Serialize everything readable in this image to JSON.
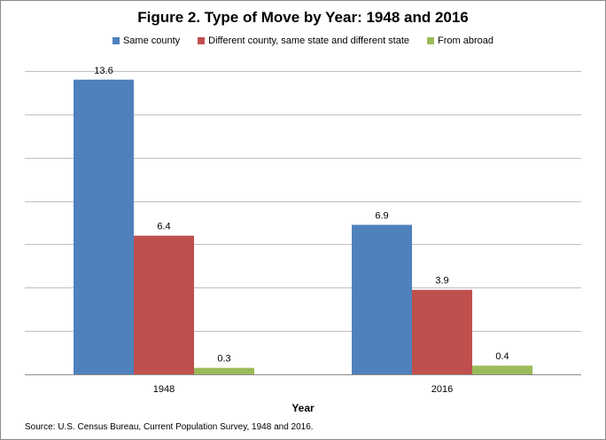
{
  "chart_data": {
    "type": "bar",
    "title": "Figure 2. Type of Move by Year: 1948 and 2016",
    "xlabel": "Year",
    "ylabel": "",
    "categories": [
      "1948",
      "2016"
    ],
    "series": [
      {
        "name": "Same county",
        "values": [
          13.6,
          6.9
        ],
        "color": "#4f81bd"
      },
      {
        "name": "Different county, same state and different state",
        "values": [
          6.4,
          3.9
        ],
        "color": "#c0504d"
      },
      {
        "name": "From abroad",
        "values": [
          0.3,
          0.4
        ],
        "color": "#9bbb59"
      }
    ],
    "ylim": [
      0,
      14
    ],
    "grid": true,
    "legend": "top",
    "data_labels": true
  },
  "source": "Source: U.S. Census Bureau, Current Population Survey, 1948 and 2016."
}
